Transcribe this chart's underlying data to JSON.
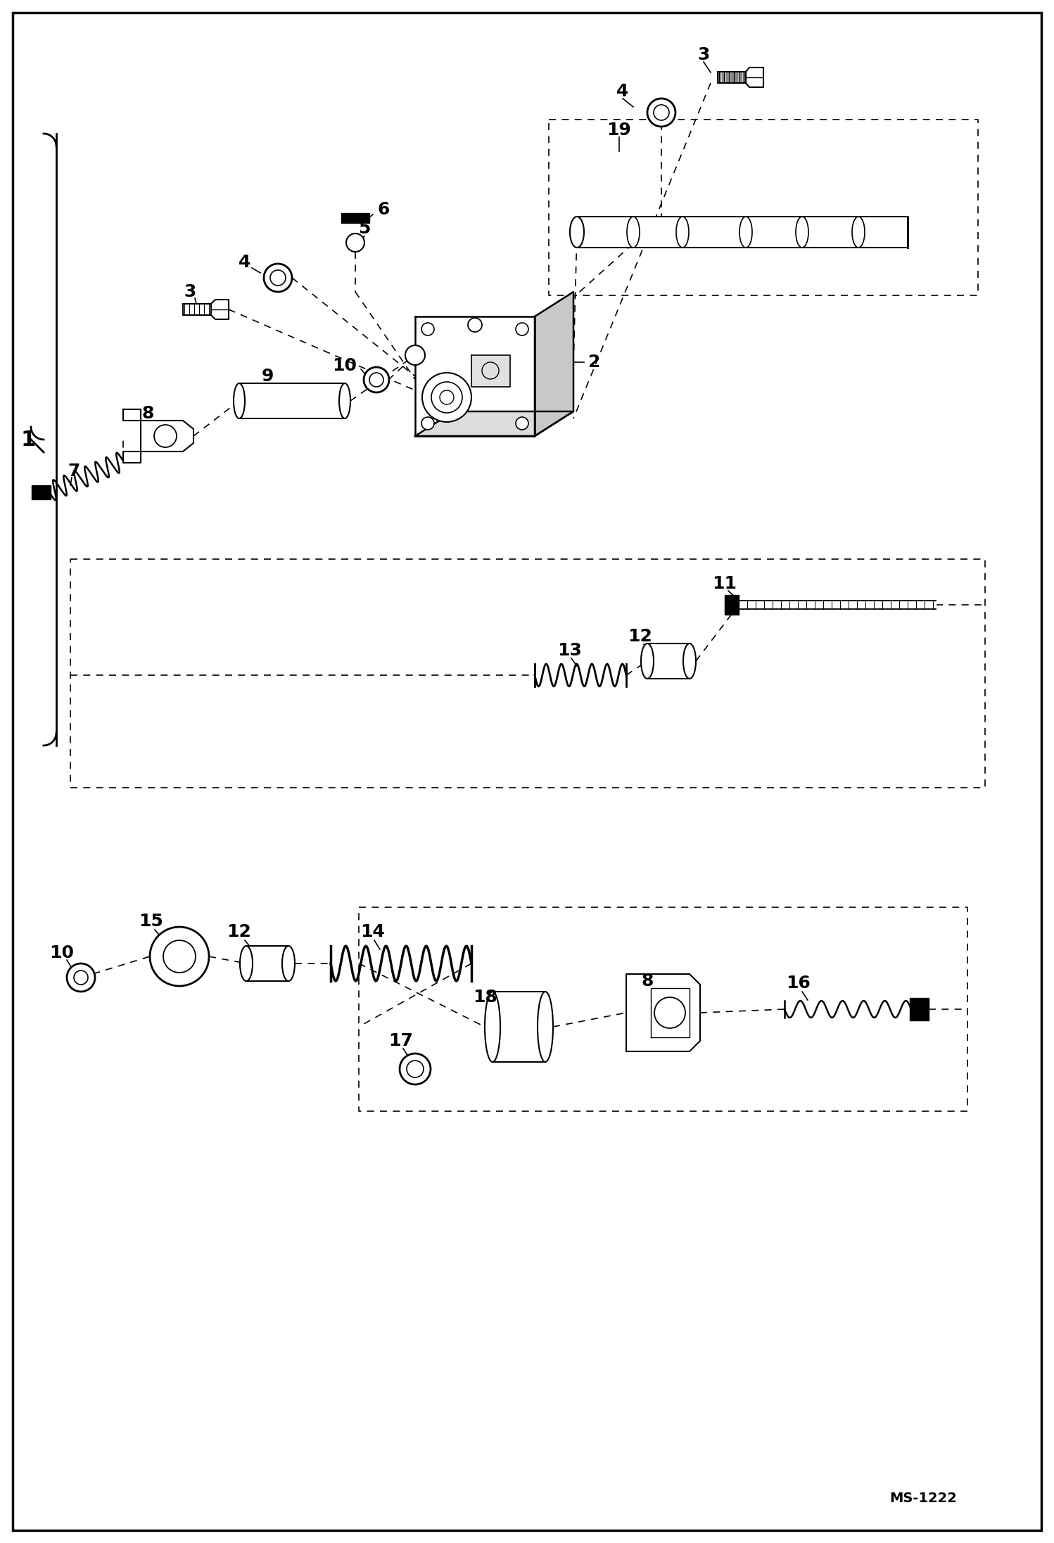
{
  "bg_color": "#ffffff",
  "border_color": "#000000",
  "watermark": "MS-1222",
  "fig_width": 14.98,
  "fig_height": 21.94,
  "dpi": 100
}
